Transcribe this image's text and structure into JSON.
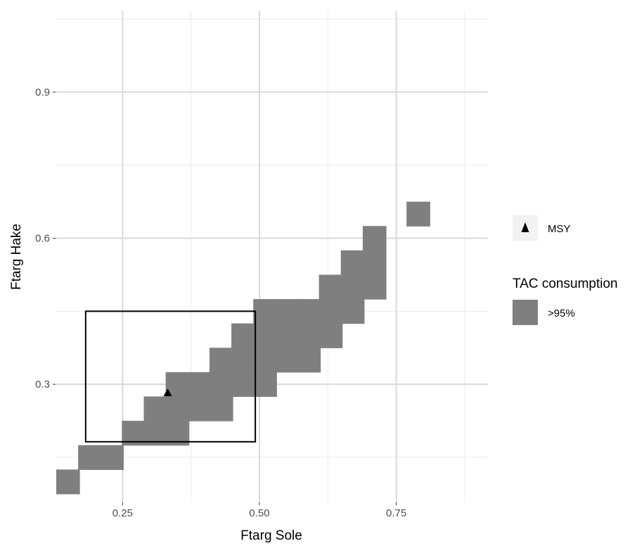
{
  "chart_data": {
    "type": "heatmap",
    "xlabel": "Ftarg Sole",
    "ylabel": "Ftarg Hake",
    "xlim": [
      0.1275,
      0.9175
    ],
    "ylim": [
      0.0575,
      1.0675
    ],
    "x_ticks": [
      0.25,
      0.5,
      0.75
    ],
    "x_tick_labels": [
      "0.25",
      "0.50",
      "0.75"
    ],
    "y_ticks": [
      0.3,
      0.6,
      0.9
    ],
    "y_tick_labels": [
      "0.3",
      "0.6",
      "0.9"
    ],
    "grid": true,
    "fill_legend": {
      "title": "TAC consumption",
      "label": ">95%",
      "color": "#7f7f7f"
    },
    "point_legend": {
      "label": "MSY",
      "shape": "triangle",
      "color": "#000000"
    },
    "cells_width": 0.0425,
    "cells_height": 0.05,
    "cells": [
      [
        0.15,
        0.1
      ],
      [
        0.19,
        0.15
      ],
      [
        0.23,
        0.15
      ],
      [
        0.27,
        0.2
      ],
      [
        0.31,
        0.2
      ],
      [
        0.35,
        0.2
      ],
      [
        0.31,
        0.25
      ],
      [
        0.35,
        0.25
      ],
      [
        0.39,
        0.25
      ],
      [
        0.43,
        0.25
      ],
      [
        0.35,
        0.3
      ],
      [
        0.39,
        0.3
      ],
      [
        0.43,
        0.3
      ],
      [
        0.47,
        0.3
      ],
      [
        0.51,
        0.3
      ],
      [
        0.43,
        0.35
      ],
      [
        0.47,
        0.35
      ],
      [
        0.51,
        0.35
      ],
      [
        0.55,
        0.35
      ],
      [
        0.59,
        0.35
      ],
      [
        0.47,
        0.4
      ],
      [
        0.51,
        0.4
      ],
      [
        0.55,
        0.4
      ],
      [
        0.59,
        0.4
      ],
      [
        0.63,
        0.4
      ],
      [
        0.51,
        0.45
      ],
      [
        0.55,
        0.45
      ],
      [
        0.59,
        0.45
      ],
      [
        0.63,
        0.45
      ],
      [
        0.67,
        0.45
      ],
      [
        0.63,
        0.5
      ],
      [
        0.67,
        0.5
      ],
      [
        0.71,
        0.5
      ],
      [
        0.67,
        0.55
      ],
      [
        0.71,
        0.55
      ],
      [
        0.71,
        0.6
      ],
      [
        0.79,
        0.65
      ]
    ],
    "msy_point": {
      "x": 0.3325,
      "y": 0.282
    },
    "region": {
      "x": [
        0.1825,
        0.4925
      ],
      "y": [
        0.182,
        0.45
      ]
    }
  }
}
